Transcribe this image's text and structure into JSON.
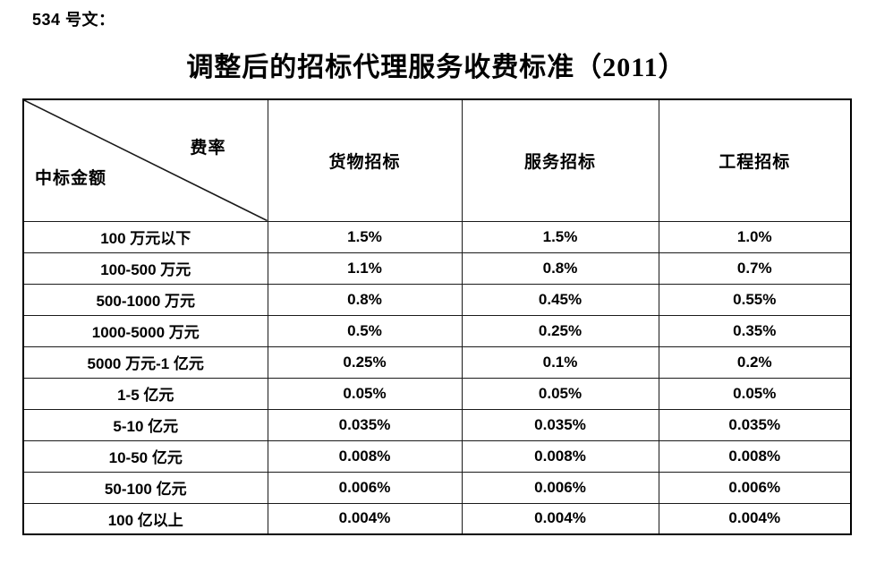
{
  "doc": {
    "label": "534 号文：",
    "title": "调整后的招标代理服务收费标准（2011）"
  },
  "table": {
    "corner": {
      "rate_label": "费率",
      "amount_label": "中标金额"
    },
    "columns": [
      "货物招标",
      "服务招标",
      "工程招标"
    ],
    "rows": [
      {
        "amount": "100 万元以下",
        "goods": "1.5%",
        "service": "1.5%",
        "engineering": "1.0%"
      },
      {
        "amount": "100-500 万元",
        "goods": "1.1%",
        "service": "0.8%",
        "engineering": "0.7%"
      },
      {
        "amount": "500-1000 万元",
        "goods": "0.8%",
        "service": "0.45%",
        "engineering": "0.55%"
      },
      {
        "amount": "1000-5000 万元",
        "goods": "0.5%",
        "service": "0.25%",
        "engineering": "0.35%"
      },
      {
        "amount": "5000 万元-1 亿元",
        "goods": "0.25%",
        "service": "0.1%",
        "engineering": "0.2%"
      },
      {
        "amount": "1-5 亿元",
        "goods": "0.05%",
        "service": "0.05%",
        "engineering": "0.05%"
      },
      {
        "amount": "5-10 亿元",
        "goods": "0.035%",
        "service": "0.035%",
        "engineering": "0.035%"
      },
      {
        "amount": "10-50 亿元",
        "goods": "0.008%",
        "service": "0.008%",
        "engineering": "0.008%"
      },
      {
        "amount": "50-100 亿元",
        "goods": "0.006%",
        "service": "0.006%",
        "engineering": "0.006%"
      },
      {
        "amount": "100 亿以上",
        "goods": "0.004%",
        "service": "0.004%",
        "engineering": "0.004%"
      }
    ]
  }
}
